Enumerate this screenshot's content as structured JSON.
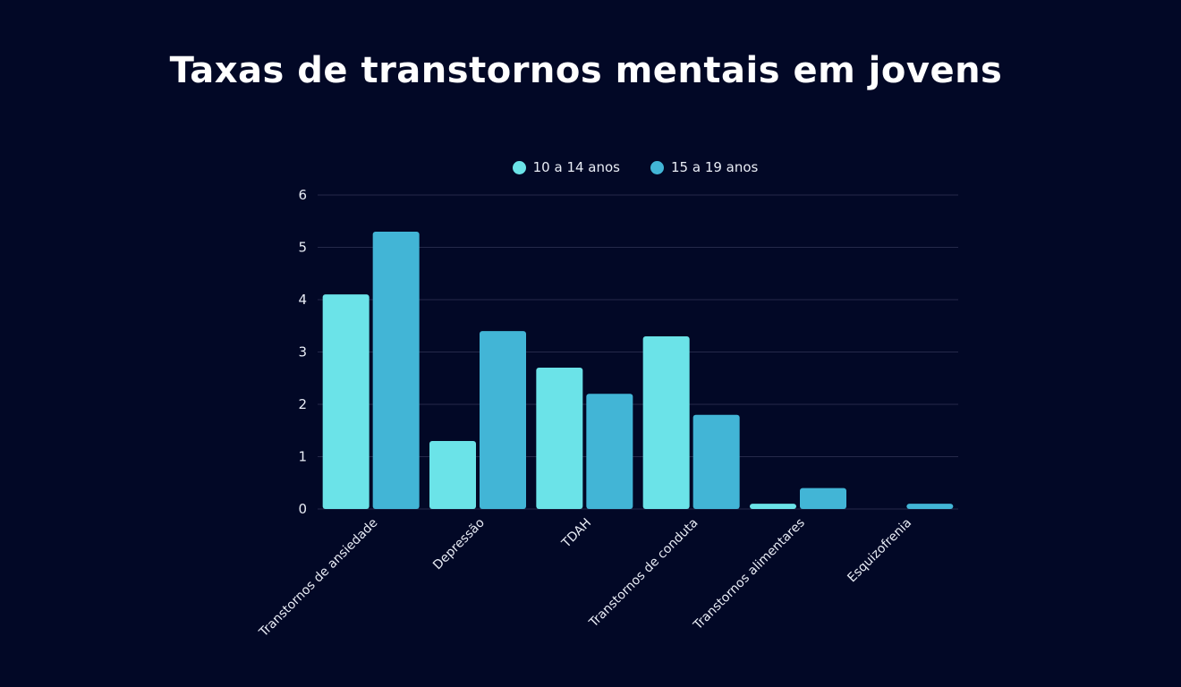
{
  "colors": {
    "background": "#020826",
    "series_1": "#6be3e8",
    "series_2": "#42b5d6",
    "grid": "#25294a",
    "text": "#e8ecf5"
  },
  "chart_data": {
    "type": "bar",
    "title": "Taxas de transtornos mentais em jovens",
    "xlabel": "",
    "ylabel": "",
    "ylim": [
      0,
      6
    ],
    "yticks": [
      0,
      1,
      2,
      3,
      4,
      5,
      6
    ],
    "grid": true,
    "legend_position": "top-center",
    "categories": [
      "Transtornos de ansiedade",
      "Depressão",
      "TDAH",
      "Transtornos de conduta",
      "Transtornos alimentares",
      "Esquizofrenia"
    ],
    "series": [
      {
        "name": "10 a 14 anos",
        "color": "#6be3e8",
        "values": [
          4.1,
          1.3,
          2.7,
          3.3,
          0.1,
          0
        ]
      },
      {
        "name": "15 a 19 anos",
        "color": "#42b5d6",
        "values": [
          5.3,
          3.4,
          2.2,
          1.8,
          0.4,
          0.1
        ]
      }
    ]
  }
}
